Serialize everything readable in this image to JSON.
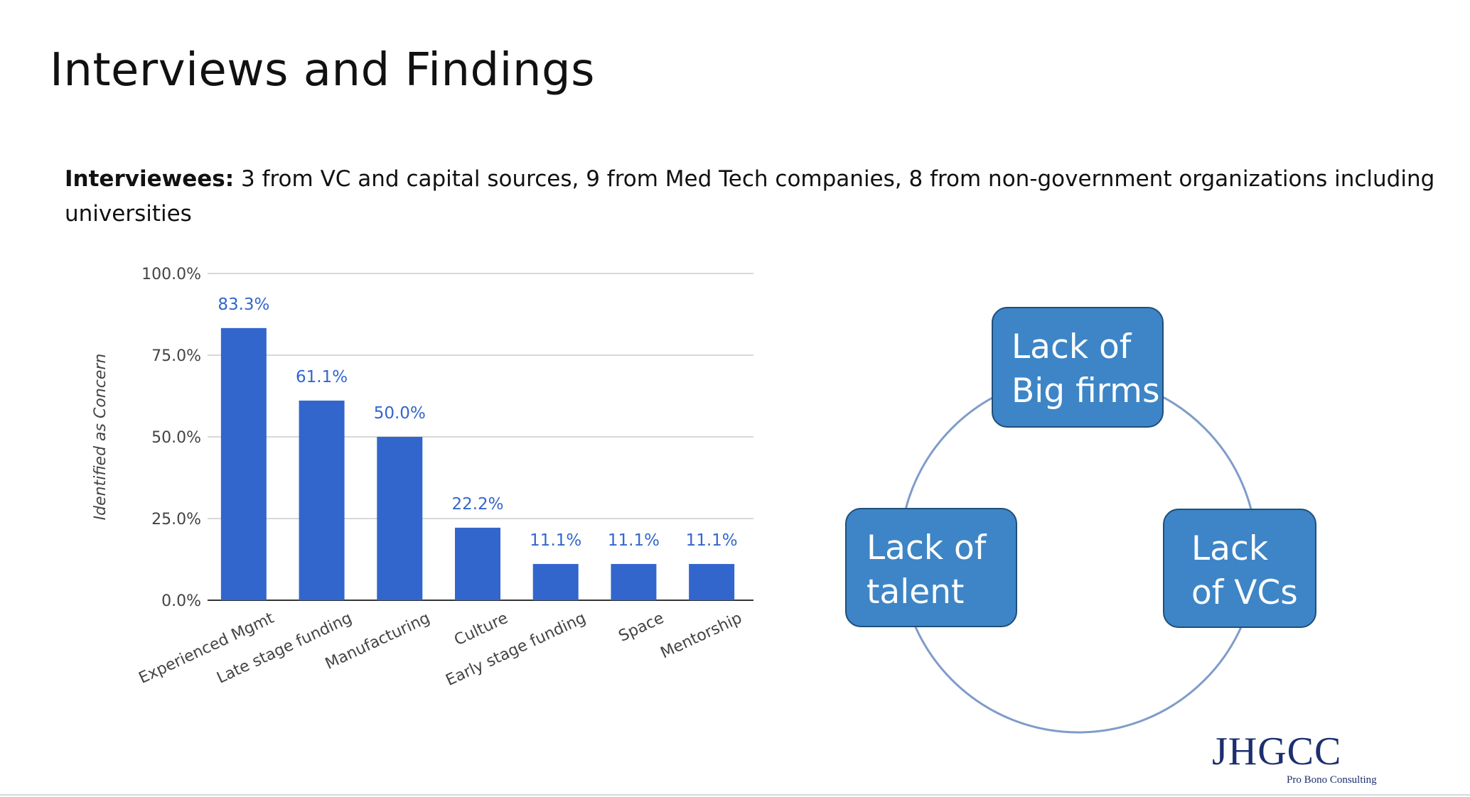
{
  "slide": {
    "title": "Interviews and Findings",
    "subtitle_lead": "Interviewees:",
    "subtitle_text": " 3 from VC and capital sources, 9 from Med Tech companies, 8 from non-government organizations including universities"
  },
  "chart_data": {
    "type": "bar",
    "categories": [
      "Experienced Mgmt",
      "Late stage funding",
      "Manufacturing",
      "Culture",
      "Early stage funding",
      "Space",
      "Mentorship"
    ],
    "values": [
      83.3,
      61.1,
      50.0,
      22.2,
      11.1,
      11.1,
      11.1
    ],
    "data_labels": [
      "83.3%",
      "61.1%",
      "50.0%",
      "22.2%",
      "11.1%",
      "11.1%",
      "11.1%"
    ],
    "ylabel": "Identified as Concern",
    "ylim": [
      0,
      100
    ],
    "yticks": [
      "0.0%",
      "25.0%",
      "50.0%",
      "75.0%",
      "100.0%"
    ],
    "grid": true,
    "bar_color": "#3366cc",
    "label_color": "#3366cc"
  },
  "cycle": {
    "top_label_line1": "Lack of",
    "top_label_line2": "Big firms",
    "left_label_line1": "Lack of",
    "left_label_line2": "talent",
    "right_label_line1": "Lack",
    "right_label_line2": "of VCs",
    "box_color": "#3d85c6",
    "ring_color": "#7f9cc9"
  },
  "logo": {
    "main": "JHGCC",
    "sub": "Pro Bono Consulting"
  }
}
